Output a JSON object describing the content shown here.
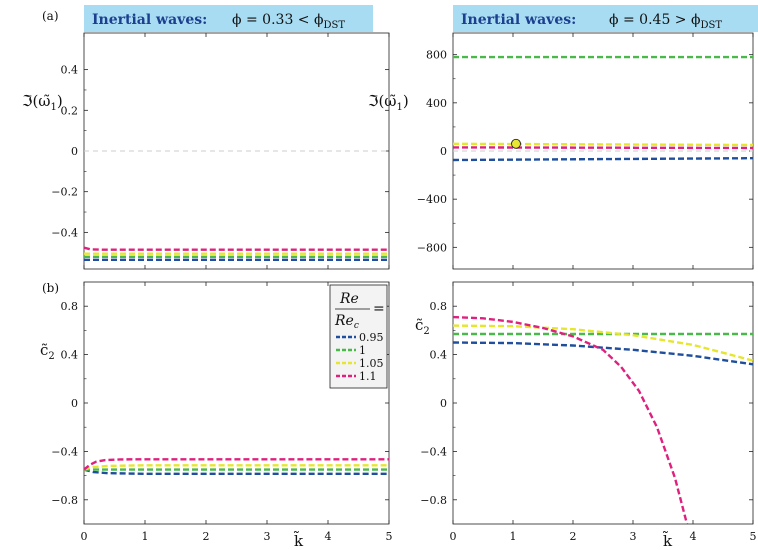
{
  "figure": {
    "panel_a_label": "(a)",
    "panel_b_label": "(b)",
    "ylabel_top": "ℑ(ω̃",
    "ylabel_top_sub": "1",
    "ylabel_top_close": ")",
    "ylabel_bottom": "c̃",
    "ylabel_bottom_sub": "2",
    "xlabel": "k̃",
    "title_left_bold": "Inertial waves:",
    "title_left_math": "ϕ = 0.33 < ϕ",
    "title_left_sub": "DST",
    "title_right_bold": "Inertial waves:",
    "title_right_math": "ϕ = 0.45 > ϕ",
    "title_right_sub": "DST",
    "title_bg_color": "#a8dcf2",
    "legend_title_num": "Re",
    "legend_title_den": "Re",
    "legend_title_den_sub": "c",
    "legend_title_eq": "="
  },
  "chart_data": [
    {
      "type": "line",
      "panel": "a-left",
      "xlim": [
        0,
        5
      ],
      "ylim": [
        -0.58,
        0.58
      ],
      "xticks": [
        0,
        1,
        2,
        3,
        4,
        5
      ],
      "yticks": [
        -0.4,
        -0.2,
        0,
        0.2,
        0.4
      ],
      "ytick_labels": [
        "−0.4",
        "−0.2",
        "0",
        "0.2",
        "0.4"
      ],
      "zero_line": true,
      "series": [
        {
          "name": "0.95",
          "color": "#1f4e9c",
          "x": [
            0,
            0.2,
            5
          ],
          "y": [
            -0.535,
            -0.535,
            -0.535
          ]
        },
        {
          "name": "1",
          "color": "#4ab84a",
          "x": [
            0,
            0.2,
            5
          ],
          "y": [
            -0.52,
            -0.52,
            -0.52
          ]
        },
        {
          "name": "1.05",
          "color": "#e6e62e",
          "x": [
            0,
            0.2,
            5
          ],
          "y": [
            -0.505,
            -0.505,
            -0.505
          ]
        },
        {
          "name": "1.1",
          "color": "#e0207e",
          "x": [
            0,
            0.1,
            0.3,
            5
          ],
          "y": [
            -0.475,
            -0.483,
            -0.485,
            -0.485
          ]
        }
      ]
    },
    {
      "type": "line",
      "panel": "a-right",
      "xlim": [
        0,
        5
      ],
      "ylim": [
        -980,
        980
      ],
      "xticks": [
        0,
        1,
        2,
        3,
        4,
        5
      ],
      "yticks": [
        -800,
        -400,
        0,
        400,
        800
      ],
      "ytick_labels": [
        "−800",
        "−400",
        "0",
        "400",
        "800"
      ],
      "zero_line": true,
      "marker": {
        "x": 1.05,
        "y": 60,
        "fill": "#e8e834"
      },
      "series": [
        {
          "name": "0.95",
          "color": "#1f4e9c",
          "x": [
            0,
            5
          ],
          "y": [
            -75,
            -60
          ]
        },
        {
          "name": "1",
          "color": "#4ab84a",
          "x": [
            0,
            5
          ],
          "y": [
            780,
            780
          ]
        },
        {
          "name": "1.05",
          "color": "#e6e62e",
          "x": [
            0,
            5
          ],
          "y": [
            60,
            50
          ]
        },
        {
          "name": "1.1",
          "color": "#e0207e",
          "x": [
            0,
            5
          ],
          "y": [
            30,
            25
          ]
        }
      ]
    },
    {
      "type": "line",
      "panel": "b-left",
      "xlim": [
        0,
        5
      ],
      "ylim": [
        -1.0,
        1.0
      ],
      "xticks": [
        0,
        1,
        2,
        3,
        4,
        5
      ],
      "yticks": [
        -0.8,
        -0.4,
        0,
        0.4,
        0.8
      ],
      "ytick_labels": [
        "−0.8",
        "−0.4",
        "0",
        "0.4",
        "0.8"
      ],
      "series": [
        {
          "name": "0.95",
          "color": "#1f4e9c",
          "x": [
            0,
            0.15,
            0.4,
            1,
            5
          ],
          "y": [
            -0.55,
            -0.57,
            -0.58,
            -0.585,
            -0.585
          ]
        },
        {
          "name": "1",
          "color": "#4ab84a",
          "x": [
            0,
            0.2,
            0.5,
            5
          ],
          "y": [
            -0.55,
            -0.55,
            -0.55,
            -0.55
          ]
        },
        {
          "name": "1.05",
          "color": "#e6e62e",
          "x": [
            0,
            0.15,
            0.4,
            1,
            5
          ],
          "y": [
            -0.55,
            -0.53,
            -0.52,
            -0.515,
            -0.515
          ]
        },
        {
          "name": "1.1",
          "color": "#e0207e",
          "x": [
            0,
            0.1,
            0.2,
            0.35,
            0.6,
            1,
            5
          ],
          "y": [
            -0.55,
            -0.51,
            -0.485,
            -0.472,
            -0.466,
            -0.465,
            -0.465
          ]
        }
      ]
    },
    {
      "type": "line",
      "panel": "b-right",
      "xlim": [
        0,
        5
      ],
      "ylim": [
        -1.0,
        1.0
      ],
      "xticks": [
        0,
        1,
        2,
        3,
        4,
        5
      ],
      "yticks": [
        -0.8,
        -0.4,
        0,
        0.4,
        0.8
      ],
      "ytick_labels": [
        "−0.8",
        "−0.4",
        "0",
        "0.4",
        "0.8"
      ],
      "series": [
        {
          "name": "0.95",
          "color": "#1f4e9c",
          "x": [
            0,
            1,
            2,
            3,
            4,
            5
          ],
          "y": [
            0.5,
            0.495,
            0.475,
            0.44,
            0.39,
            0.32
          ]
        },
        {
          "name": "1",
          "color": "#4ab84a",
          "x": [
            0,
            5
          ],
          "y": [
            0.57,
            0.57
          ]
        },
        {
          "name": "1.05",
          "color": "#e6e62e",
          "x": [
            0,
            1,
            2,
            3,
            4,
            5
          ],
          "y": [
            0.64,
            0.635,
            0.61,
            0.56,
            0.48,
            0.35
          ]
        },
        {
          "name": "1.1",
          "color": "#e0207e",
          "x": [
            0,
            0.5,
            1,
            1.5,
            2,
            2.5,
            2.8,
            3.1,
            3.4,
            3.7,
            3.9
          ],
          "y": [
            0.71,
            0.7,
            0.67,
            0.62,
            0.55,
            0.44,
            0.3,
            0.1,
            -0.2,
            -0.62,
            -1.0
          ]
        }
      ]
    }
  ]
}
